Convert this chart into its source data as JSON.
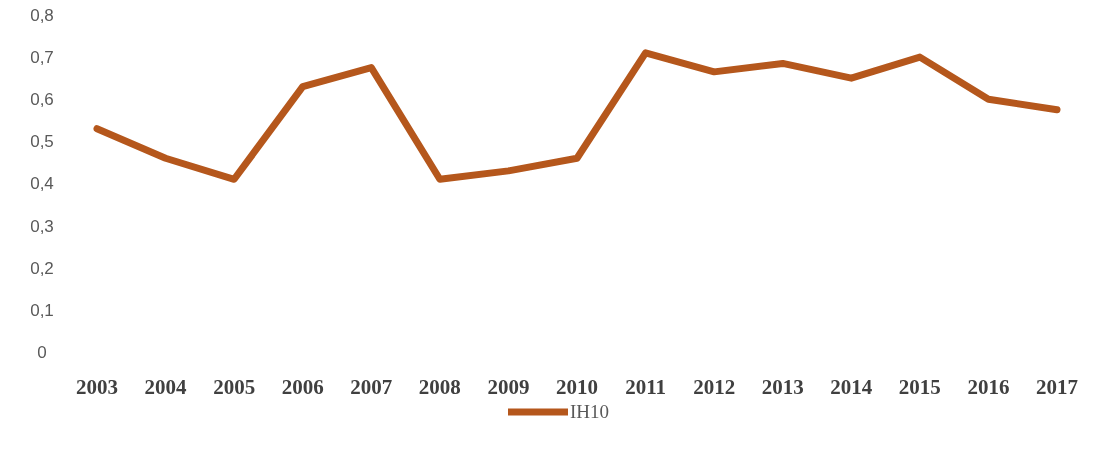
{
  "chart_data": {
    "type": "line",
    "categories": [
      "2003",
      "2004",
      "2005",
      "2006",
      "2007",
      "2008",
      "2009",
      "2010",
      "2011",
      "2012",
      "2013",
      "2014",
      "2015",
      "2016",
      "2017"
    ],
    "series": [
      {
        "name": "IH10",
        "color": "#b5571c",
        "values": [
          0.53,
          0.46,
          0.41,
          0.63,
          0.675,
          0.41,
          0.43,
          0.46,
          0.71,
          0.665,
          0.685,
          0.65,
          0.7,
          0.6,
          0.575
        ]
      }
    ],
    "ylim": [
      0,
      0.8
    ],
    "yticks": [
      {
        "value": 0,
        "label": "0"
      },
      {
        "value": 0.1,
        "label": "0,1"
      },
      {
        "value": 0.2,
        "label": "0,2"
      },
      {
        "value": 0.3,
        "label": "0,3"
      },
      {
        "value": 0.4,
        "label": "0,4"
      },
      {
        "value": 0.5,
        "label": "0,5"
      },
      {
        "value": 0.6,
        "label": "0,6"
      },
      {
        "value": 0.7,
        "label": "0,7"
      },
      {
        "value": 0.8,
        "label": "0,8"
      }
    ],
    "legend": "bottom",
    "marker": "none",
    "line_style": "solid",
    "grid": false
  }
}
